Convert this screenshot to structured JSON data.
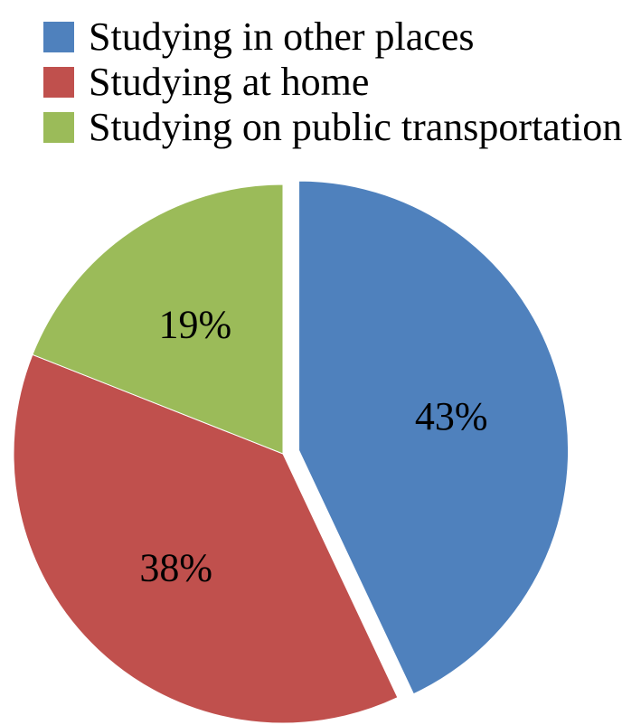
{
  "chart_data": {
    "type": "pie",
    "title": "",
    "slices": [
      {
        "label": "Studying in other places",
        "value": 43,
        "display": "43%",
        "color": "#4F81BD",
        "exploded": true
      },
      {
        "label": "Studying at home",
        "value": 38,
        "display": "38%",
        "color": "#C0504D",
        "exploded": false
      },
      {
        "label": "Studying on public transportation",
        "value": 19,
        "display": "19%",
        "color": "#9BBB59",
        "exploded": false
      }
    ],
    "start_angle_deg": 0,
    "direction": "clockwise",
    "legend": {
      "position": "top"
    }
  }
}
